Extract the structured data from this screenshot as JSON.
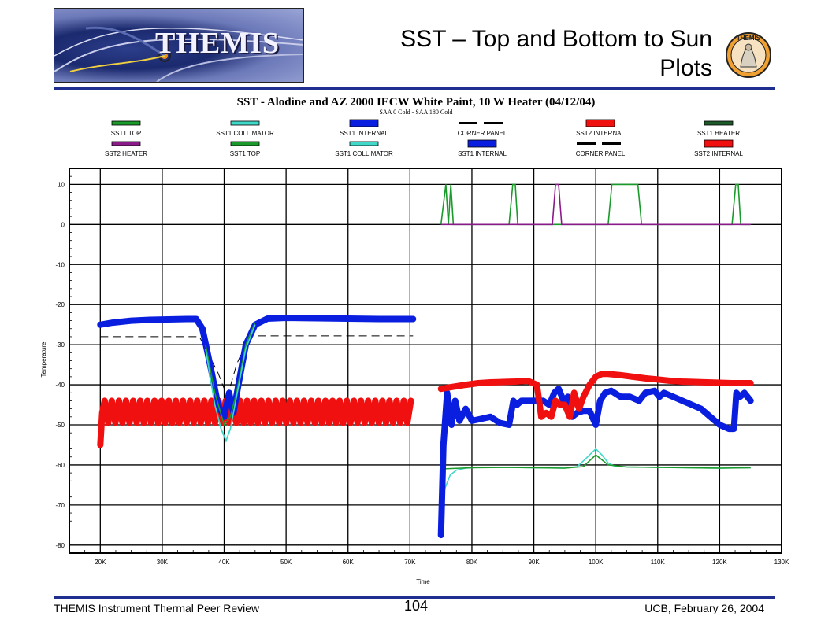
{
  "header": {
    "logo_text": "THEMIS",
    "title_line1": "SST – Top and Bottom to Sun",
    "title_line2": "Plots",
    "badge_text": "THEMIS"
  },
  "footer": {
    "left": "THEMIS Instrument Thermal Peer Review",
    "page": "104",
    "right": "UCB, February 26, 2004"
  },
  "colors": {
    "rule": "#1f2f8f",
    "sst1_top": "#1a9a2a",
    "sst1_collimator": "#40d8c8",
    "sst1_internal": "#0a1ee0",
    "corner_panel": "#000000",
    "sst2_internal": "#f01010",
    "sst1_heater": "#1d5a2a",
    "sst2_heater": "#8a1a8a"
  },
  "chart_data": {
    "type": "line",
    "title": "SST -  Alodine and AZ 2000 IECW White Paint, 10 W Heater  (04/12/04)",
    "subtitle": "SAA 0 Cold - SAA 180 Cold",
    "xlabel": "Time",
    "ylabel": "Temperature",
    "xlim": [
      15000,
      130000
    ],
    "ylim": [
      -82,
      14
    ],
    "x_ticks": [
      20000,
      30000,
      40000,
      50000,
      60000,
      70000,
      80000,
      90000,
      100000,
      110000,
      120000,
      130000
    ],
    "x_tick_labels": [
      "20K",
      "30K",
      "40K",
      "50K",
      "60K",
      "70K",
      "80K",
      "90K",
      "100K",
      "110K",
      "120K",
      "130K"
    ],
    "y_ticks": [
      10,
      0,
      -10,
      -20,
      -30,
      -40,
      -50,
      -60,
      -70,
      -80
    ],
    "y_tick_labels": [
      "10",
      "0",
      "-10",
      "-20",
      "-30",
      "-40",
      "-50",
      "-60",
      "-70",
      "-80"
    ],
    "grid": true,
    "legend_position": "top",
    "legend": [
      {
        "name": "SST1 TOP",
        "color": "#1a9a2a",
        "style": "thin"
      },
      {
        "name": "SST1 COLLIMATOR",
        "color": "#40d8c8",
        "style": "thin"
      },
      {
        "name": "SST1 INTERNAL",
        "color": "#0a1ee0",
        "style": "thick"
      },
      {
        "name": "CORNER PANEL",
        "color": "#000000",
        "style": "dashed"
      },
      {
        "name": "SST2 INTERNAL",
        "color": "#f01010",
        "style": "thick"
      },
      {
        "name": "SST1 HEATER",
        "color": "#1d5a2a",
        "style": "thin"
      },
      {
        "name": "SST2 HEATER",
        "color": "#8a1a8a",
        "style": "thin"
      },
      {
        "name": "SST1 TOP",
        "color": "#1a9a2a",
        "style": "thin"
      },
      {
        "name": "SST1 COLLIMATOR",
        "color": "#40d8c8",
        "style": "thin"
      },
      {
        "name": "SST1 INTERNAL",
        "color": "#0a1ee0",
        "style": "thick"
      },
      {
        "name": "CORNER PANEL",
        "color": "#000000",
        "style": "dashed"
      },
      {
        "name": "SST2 INTERNAL",
        "color": "#f01010",
        "style": "thick"
      }
    ],
    "series": [
      {
        "key": "case1_sst1_internal",
        "color": "#0a1ee0",
        "style": "thick",
        "x": [
          20000,
          22000,
          25000,
          28000,
          31000,
          34000,
          35500,
          36500,
          38000,
          39000,
          40000,
          40800,
          41500,
          42300,
          43500,
          45000,
          47000,
          50000,
          55000,
          60000,
          65000,
          70500
        ],
        "y": [
          -25,
          -24.5,
          -24,
          -23.8,
          -23.7,
          -23.6,
          -23.6,
          -26,
          -37,
          -45,
          -48,
          -42,
          -47,
          -40,
          -30,
          -25,
          -23.5,
          -23.3,
          -23.4,
          -23.5,
          -23.6,
          -23.6
        ]
      },
      {
        "key": "case1_sst1_top",
        "color": "#1a9a2a",
        "style": "thin",
        "x": [
          20000,
          25000,
          30000,
          35500,
          37000,
          38500,
          40000,
          41000,
          42000,
          43500,
          45000,
          47000,
          50000,
          60000,
          70500
        ],
        "y": [
          -25,
          -24,
          -23.8,
          -23.6,
          -30,
          -42,
          -50,
          -48,
          -42,
          -30,
          -24.5,
          -23.4,
          -23.3,
          -23.5,
          -23.6
        ]
      },
      {
        "key": "case1_sst1_collimator",
        "color": "#40d8c8",
        "style": "thin",
        "x": [
          20000,
          25000,
          30000,
          35500,
          37000,
          38500,
          39500,
          40300,
          41000,
          42000,
          43500,
          45000,
          47000,
          50000,
          60000,
          70500
        ],
        "y": [
          -25,
          -24,
          -23.8,
          -23.6,
          -31,
          -45,
          -51,
          -54,
          -51,
          -43,
          -31,
          -25,
          -23.6,
          -23.4,
          -23.5,
          -23.6
        ]
      },
      {
        "key": "case1_corner_panel",
        "color": "#000000",
        "style": "dashed",
        "x": [
          20000,
          36000,
          39000,
          40500,
          42000,
          44000,
          70500
        ],
        "y": [
          -28,
          -28,
          -37,
          -43,
          -35,
          -27.8,
          -27.8
        ]
      },
      {
        "key": "case2_sst1_internal",
        "color": "#0a1ee0",
        "style": "thick",
        "x": [
          75000,
          75400,
          76000,
          76700,
          77300,
          78000,
          79000,
          80000,
          81500,
          83000,
          84500,
          86000,
          86700,
          87300,
          88000,
          90000,
          91500,
          92500,
          93300,
          94000,
          94800,
          95500,
          96200,
          97000,
          98000,
          99000,
          100000,
          100700,
          101500,
          102500,
          104000,
          105500,
          107000,
          108000,
          109500,
          110300,
          111000,
          112500,
          114000,
          115500,
          117000,
          118500,
          120000,
          121500,
          122300,
          122700,
          123300,
          124000,
          125000
        ],
        "y": [
          -77.5,
          -55,
          -42,
          -50,
          -44,
          -49,
          -46,
          -49,
          -48.5,
          -48,
          -49.5,
          -50,
          -44,
          -45,
          -44,
          -44,
          -44,
          -45,
          -42,
          -41,
          -44,
          -43,
          -48,
          -47,
          -46.5,
          -46.5,
          -50,
          -44,
          -42,
          -41.5,
          -43,
          -43,
          -44,
          -42,
          -41.5,
          -43,
          -42,
          -43,
          -44,
          -45,
          -46,
          -48,
          -50,
          -51,
          -51,
          -42,
          -43,
          -42,
          -44
        ]
      },
      {
        "key": "case2_sst2_internal",
        "color": "#f01010",
        "style": "thick",
        "x": [
          75000,
          77000,
          79000,
          81000,
          83000,
          85000,
          87000,
          89000,
          90500,
          91200,
          92000,
          92800,
          93500,
          94200,
          95000,
          95800,
          96500,
          97300,
          98000,
          99000,
          100000,
          101000,
          102000,
          104000,
          106000,
          108000,
          110000,
          112000,
          114000,
          116000,
          118000,
          120000,
          122000,
          124000,
          125000
        ],
        "y": [
          -41,
          -40.5,
          -40,
          -39.6,
          -39.4,
          -39.3,
          -39.2,
          -39,
          -40,
          -48,
          -47,
          -48,
          -44,
          -45,
          -45,
          -48,
          -42,
          -46,
          -43,
          -40,
          -38,
          -37.3,
          -37.3,
          -37.6,
          -38,
          -38.4,
          -38.7,
          -39,
          -39.2,
          -39.3,
          -39.4,
          -39.5,
          -39.6,
          -39.6,
          -39.6
        ]
      },
      {
        "key": "case2_sst1_collimator",
        "color": "#40d8c8",
        "style": "thin",
        "x": [
          75000,
          75600,
          76500,
          77500,
          79000,
          81000,
          85000,
          90000,
          95000,
          97000,
          98000,
          99000,
          100000,
          101000,
          102000,
          103000,
          105000,
          110000,
          115000,
          120000,
          125000
        ],
        "y": [
          -75,
          -66,
          -62.5,
          -61.3,
          -60.8,
          -60.6,
          -60.6,
          -60.7,
          -60.8,
          -60.4,
          -59,
          -57.5,
          -56,
          -57.5,
          -59.5,
          -60.3,
          -60.5,
          -60.6,
          -60.7,
          -60.8,
          -60.7
        ]
      },
      {
        "key": "case2_sst1_top",
        "color": "#1a9a2a",
        "style": "thin",
        "x": [
          75000,
          80000,
          85000,
          90000,
          95000,
          98000,
          100000,
          102000,
          105000,
          110000,
          115000,
          120000,
          125000
        ],
        "y": [
          -61,
          -60.7,
          -60.6,
          -60.7,
          -60.8,
          -60.4,
          -57.5,
          -60,
          -60.5,
          -60.6,
          -60.7,
          -60.8,
          -60.7
        ]
      },
      {
        "key": "case2_corner_panel",
        "color": "#000000",
        "style": "dashed",
        "x": [
          75500,
          125000
        ],
        "y": [
          -55,
          -55
        ]
      },
      {
        "key": "case2_sst1_heater",
        "color": "#1a9a2a",
        "style": "thin",
        "x": [
          75000,
          75800,
          76200,
          76600,
          77000,
          86000,
          86600,
          87000,
          87400,
          102000,
          102600,
          106800,
          107400,
          122000,
          122600,
          123000,
          123400,
          125000
        ],
        "y": [
          0,
          10,
          0,
          10,
          0,
          0,
          10,
          10,
          0,
          0,
          10,
          10,
          0,
          0,
          10,
          10,
          0,
          0
        ]
      },
      {
        "key": "case2_sst2_heater",
        "color": "#8a1a8a",
        "style": "thin",
        "x": [
          75000,
          93000,
          93500,
          94000,
          94500,
          125000
        ],
        "y": [
          0,
          0,
          10,
          10,
          0,
          0
        ]
      }
    ],
    "case1_sst2_internal": {
      "key": "case1_sst2_internal",
      "color": "#f01010",
      "style": "thick",
      "x_start": 20000,
      "x_end": 70500,
      "period": 1150,
      "hi": -44,
      "lo": -49.5,
      "start": -55
    }
  }
}
